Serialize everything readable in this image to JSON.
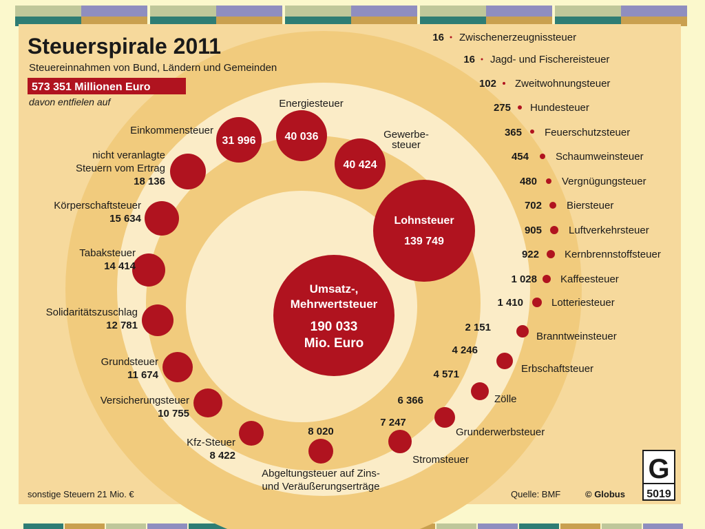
{
  "chart_data": {
    "type": "bubble-spiral",
    "title": "Steuerspirale 2011",
    "subtitle": "Steuereinnahmen von Bund, Ländern und Gemeinden",
    "total": "573 351 Millionen Euro",
    "total_note": "davon entfielen auf",
    "unit": "Mio. Euro",
    "center": {
      "name_lines": [
        "Umsatz-,",
        "Mehrwertsteuer"
      ],
      "value": 190033,
      "value_label": "190 033",
      "unit_label": "Mio. Euro"
    },
    "items": [
      {
        "name": "Lohnsteuer",
        "value": 139749,
        "value_label": "139 749"
      },
      {
        "name": "Gewerbe-steuer",
        "name_lines": [
          "Gewerbe-",
          "steuer"
        ],
        "value": 40424,
        "value_label": "40 424"
      },
      {
        "name": "Energiesteuer",
        "value": 40036,
        "value_label": "40 036"
      },
      {
        "name": "Einkommensteuer",
        "value": 31996,
        "value_label": "31 996"
      },
      {
        "name": "nicht veranlagte Steuern vom Ertrag",
        "name_lines": [
          "nicht veranlagte",
          "Steuern vom Ertrag"
        ],
        "value": 18136,
        "value_label": "18 136"
      },
      {
        "name": "Körperschaftsteuer",
        "value": 15634,
        "value_label": "15 634"
      },
      {
        "name": "Tabaksteuer",
        "value": 14414,
        "value_label": "14 414"
      },
      {
        "name": "Solidaritätszuschlag",
        "value": 12781,
        "value_label": "12 781"
      },
      {
        "name": "Grundsteuer",
        "value": 11674,
        "value_label": "11 674"
      },
      {
        "name": "Versicherungsteuer",
        "value": 10755,
        "value_label": "10 755"
      },
      {
        "name": "Kfz-Steuer",
        "value": 8422,
        "value_label": "8 422"
      },
      {
        "name": "Abgeltungsteuer auf Zins- und Veräußerungserträge",
        "name_lines": [
          "Abgeltungsteuer auf Zins-",
          "und Veräußerungserträge"
        ],
        "value": 8020,
        "value_label": "8 020"
      },
      {
        "name": "Stromsteuer",
        "value": 7247,
        "value_label": "7 247"
      },
      {
        "name": "Grunderwerbsteuer",
        "value": 6366,
        "value_label": "6 366"
      },
      {
        "name": "Zölle",
        "value": 4571,
        "value_label": "4 571"
      },
      {
        "name": "Erbschaftsteuer",
        "value": 4246,
        "value_label": "4 246"
      },
      {
        "name": "Branntweinsteuer",
        "value": 2151,
        "value_label": "2 151"
      },
      {
        "name": "Lotteriesteuer",
        "value": 1410,
        "value_label": "1 410"
      },
      {
        "name": "Kaffeesteuer",
        "value": 1028,
        "value_label": "1 028"
      },
      {
        "name": "Kernbrennstoffsteuer",
        "value": 922,
        "value_label": "922"
      },
      {
        "name": "Luftverkehrsteuer",
        "value": 905,
        "value_label": "905"
      },
      {
        "name": "Biersteuer",
        "value": 702,
        "value_label": "702"
      },
      {
        "name": "Vergnügungsteuer",
        "value": 480,
        "value_label": "480"
      },
      {
        "name": "Schaumweinsteuer",
        "value": 454,
        "value_label": "454"
      },
      {
        "name": "Feuerschutzsteuer",
        "value": 365,
        "value_label": "365"
      },
      {
        "name": "Hundesteuer",
        "value": 275,
        "value_label": "275"
      },
      {
        "name": "Zweitwohnungsteuer",
        "value": 102,
        "value_label": "102"
      },
      {
        "name": "Jagd- und Fischereisteuer",
        "value": 16,
        "value_label": "16"
      },
      {
        "name": "Zwischenerzeugnissteuer",
        "value": 16,
        "value_label": "16"
      }
    ],
    "footer_left": "sonstige Steuern 21 Mio. €",
    "source": "Quelle: BMF",
    "credit": "© Globus",
    "logo_number": "5019"
  },
  "colors": {
    "bubble": "#b0131f",
    "bubble_stroke": "#8a0e18",
    "background": "#fbf8cc",
    "card": "#f6d99c",
    "ring_dark": "#f1cb7d",
    "ring_light": "#fbecc7",
    "text": "#1a1a1a",
    "deco_sage": "#bfc79a",
    "deco_purple": "#8f8ebf",
    "deco_teal": "#2e7d74",
    "deco_gold": "#c9a04f"
  }
}
